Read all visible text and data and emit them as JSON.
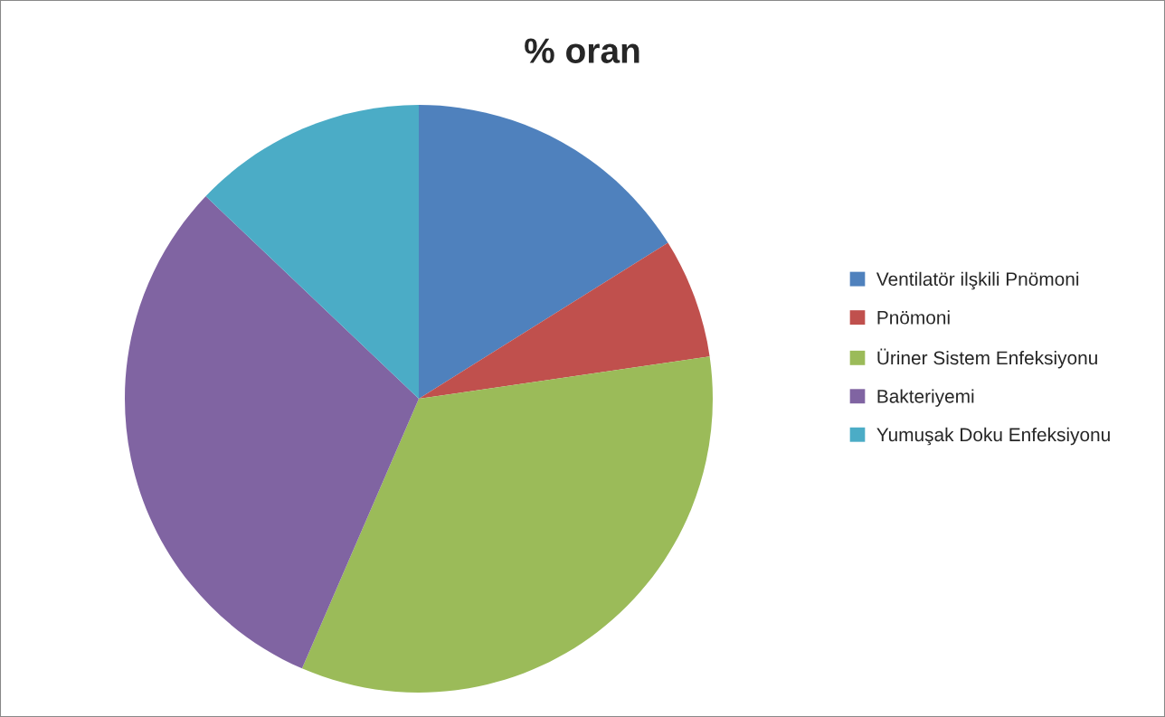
{
  "chart_data": {
    "type": "pie",
    "title": "% oran",
    "categories": [
      "Ventilatör ilşkili Pnömoni",
      "Pnömoni",
      "Üriner Sistem Enfeksiyonu",
      "Bakteriyemi",
      "Yumuşak Doku Enfeksiyonu"
    ],
    "values": [
      16.1,
      6.6,
      33.8,
      30.6,
      12.9
    ],
    "colors": [
      "#4f81bd",
      "#c0504d",
      "#9bbb59",
      "#8064a2",
      "#4bacc6"
    ],
    "legend": "right"
  }
}
